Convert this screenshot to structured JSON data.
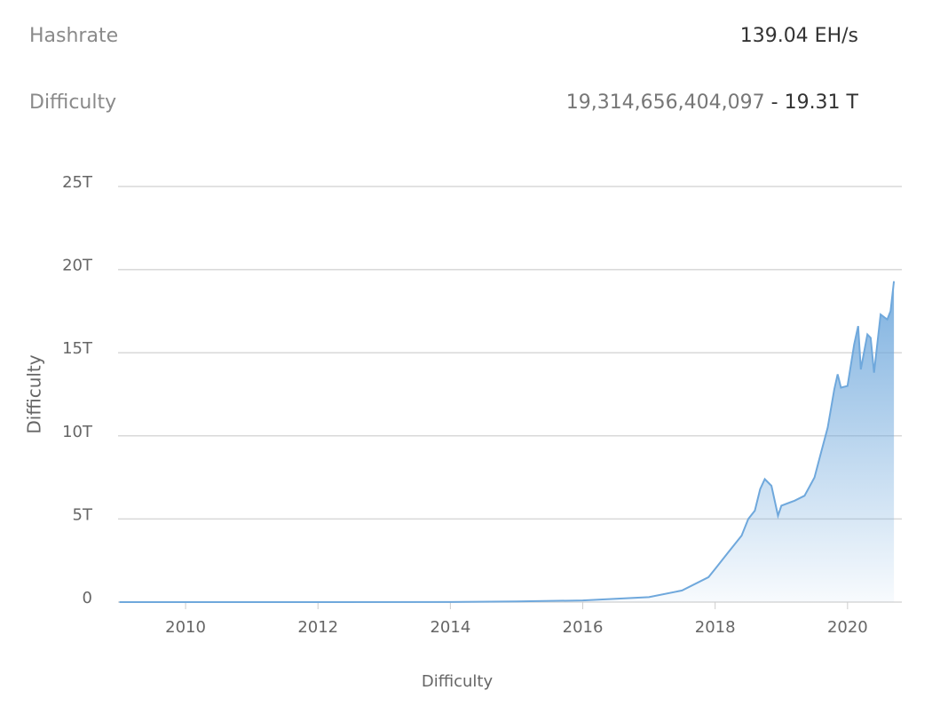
{
  "stats": [
    {
      "label": "Hashrate",
      "value": "139.04 EH/s"
    },
    {
      "label": "Difficulty",
      "exact": "19,314,656,404,097",
      "short": "- 19.31 T"
    }
  ],
  "chart_data": {
    "type": "area",
    "x_label": "Difficulty",
    "y_label": "Difficulty",
    "color": "#6fa8dc",
    "x": [
      2009.0,
      2012.0,
      2014.0,
      2015.0,
      2016.0,
      2016.5,
      2017.0,
      2017.5,
      2017.9,
      2018.0,
      2018.2,
      2018.4,
      2018.5,
      2018.6,
      2018.68,
      2018.75,
      2018.85,
      2018.95,
      2019.0,
      2019.2,
      2019.35,
      2019.5,
      2019.6,
      2019.7,
      2019.8,
      2019.85,
      2019.9,
      2020.0,
      2020.1,
      2020.16,
      2020.2,
      2020.3,
      2020.35,
      2020.4,
      2020.5,
      2020.6,
      2020.65,
      2020.7
    ],
    "values": [
      0.0,
      0.0,
      0.004,
      0.04,
      0.1,
      0.2,
      0.3,
      0.7,
      1.5,
      2.0,
      3.0,
      4.0,
      5.0,
      5.5,
      6.8,
      7.4,
      7.0,
      5.2,
      5.8,
      6.1,
      6.4,
      7.5,
      9.0,
      10.5,
      12.8,
      13.7,
      12.9,
      13.0,
      15.5,
      16.6,
      14.0,
      16.1,
      15.9,
      13.8,
      17.3,
      17.0,
      17.5,
      19.3
    ],
    "xlim": [
      2008.98,
      2020.82
    ],
    "ylim": [
      0,
      25
    ],
    "xticks": [
      2010,
      2012,
      2014,
      2016,
      2018,
      2020
    ],
    "yticks": [
      0,
      {
        "value": 5,
        "label": "5T"
      },
      {
        "value": 10,
        "label": "10T"
      },
      {
        "value": 15,
        "label": "15T"
      },
      {
        "value": 20,
        "label": "20T"
      },
      {
        "value": 25,
        "label": "25T"
      }
    ],
    "grid": true
  }
}
